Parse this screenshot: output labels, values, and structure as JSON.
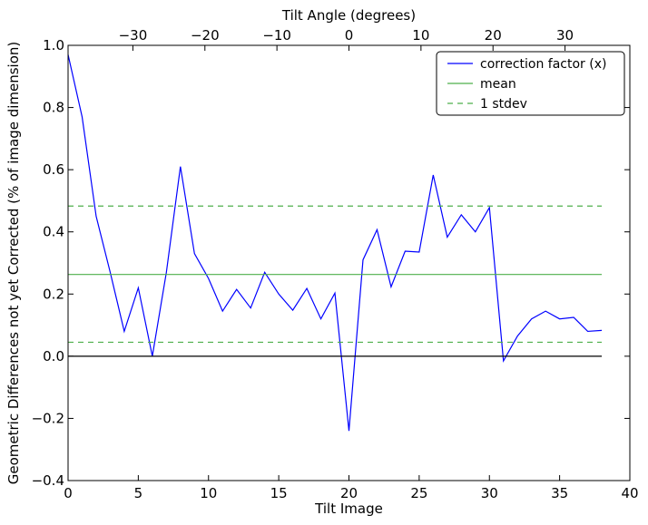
{
  "chart_data": {
    "type": "line",
    "xlabel": "Tilt Image",
    "ylabel": "Geometric Differences not yet Corrected (% of image dimension)",
    "top_xlabel": "Tilt Angle (degrees)",
    "xlim": [
      0,
      40
    ],
    "ylim": [
      -0.4,
      1.0
    ],
    "top_xlim": [
      -39,
      39
    ],
    "grid": false,
    "legend_position": "top-right",
    "x_ticks": [
      "0",
      "5",
      "10",
      "15",
      "20",
      "25",
      "30",
      "35",
      "40"
    ],
    "y_ticks": [
      "−0.4",
      "−0.2",
      "0.0",
      "0.2",
      "0.4",
      "0.6",
      "0.8",
      "1.0"
    ],
    "top_x_ticks": [
      "−30",
      "−20",
      "−10",
      "0",
      "10",
      "20",
      "30"
    ],
    "series": [
      {
        "name": "correction factor (x)",
        "color": "#0000ff",
        "style": "solid",
        "x": [
          0,
          1,
          2,
          3,
          4,
          5,
          6,
          7,
          8,
          9,
          10,
          11,
          12,
          13,
          14,
          15,
          16,
          17,
          18,
          19,
          20,
          21,
          22,
          23,
          24,
          25,
          26,
          27,
          28,
          29,
          30,
          31,
          32,
          33,
          34,
          35,
          36,
          37,
          38
        ],
        "y": [
          0.97,
          0.77,
          0.45,
          0.27,
          0.08,
          0.22,
          0.0,
          0.27,
          0.61,
          0.33,
          0.25,
          0.145,
          0.215,
          0.155,
          0.27,
          0.2,
          0.148,
          0.218,
          0.12,
          0.203,
          -0.24,
          0.31,
          0.407,
          0.223,
          0.338,
          0.335,
          0.583,
          0.383,
          0.455,
          0.4,
          0.478,
          -0.015,
          0.065,
          0.12,
          0.145,
          0.12,
          0.125,
          0.08,
          0.083
        ]
      },
      {
        "name": "mean",
        "color": "#4daf4a",
        "style": "solid",
        "x": [
          0,
          38
        ],
        "y": [
          0.263,
          0.263
        ]
      },
      {
        "name": "1 stdev",
        "color": "#4daf4a",
        "style": "dashed",
        "x": [
          0,
          38
        ],
        "y": [
          0.483,
          0.483
        ]
      },
      {
        "name": "",
        "color": "#4daf4a",
        "style": "dashed",
        "x": [
          0,
          38
        ],
        "y": [
          0.045,
          0.045
        ]
      },
      {
        "name": "",
        "color": "#000000",
        "style": "solid",
        "x": [
          0,
          38
        ],
        "y": [
          0.0,
          0.0
        ]
      }
    ]
  }
}
